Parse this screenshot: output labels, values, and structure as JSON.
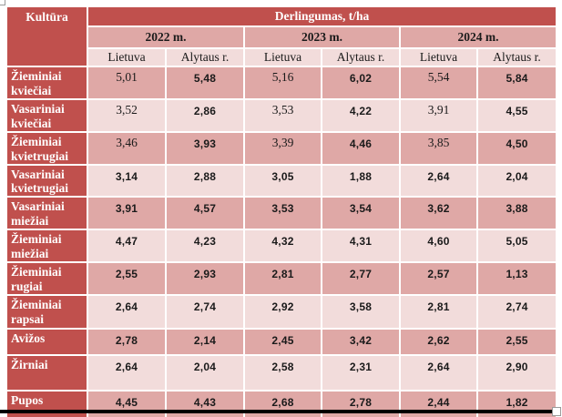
{
  "colors": {
    "header_red": "#c0504d",
    "row_pink_mid": "#dfa8a6",
    "row_pink_light": "#f2dcdb",
    "text_dark": "#1a1a1a",
    "text_white": "#ffffff"
  },
  "table": {
    "corner_header": "Kultūra",
    "main_header": "Derlingumas, t/ha",
    "year_headers": [
      "2022 m.",
      "2023 m.",
      "2024 m."
    ],
    "region_headers": [
      "Lietuva",
      "Alytaus r.",
      "Lietuva",
      "Alytaus r.",
      "Lietuva",
      "Alytaus r."
    ],
    "rows": [
      {
        "label": "Žieminiai kviečiai",
        "values": [
          "5,01",
          "5,48",
          "5,16",
          "6,02",
          "5,54",
          "5,84"
        ],
        "styles": [
          "plain",
          "bold",
          "plain",
          "bold",
          "plain",
          "bold"
        ],
        "shade": "mid"
      },
      {
        "label": "Vasariniai kviečiai",
        "values": [
          "3,52",
          "2,86",
          "3,53",
          "4,22",
          "3,91",
          "4,55"
        ],
        "styles": [
          "plain",
          "bold",
          "plain",
          "bold",
          "plain",
          "bold"
        ],
        "shade": "light"
      },
      {
        "label": "Žieminiai kvietrugiai",
        "values": [
          "3,46",
          "3,93",
          "3,39",
          "4,46",
          "3,85",
          "4,50"
        ],
        "styles": [
          "plain",
          "bold",
          "plain",
          "bold",
          "plain",
          "bold"
        ],
        "shade": "mid"
      },
      {
        "label": "Vasariniai kvietrugiai",
        "values": [
          "3,14",
          "2,88",
          "3,05",
          "1,88",
          "2,64",
          "2,04"
        ],
        "styles": [
          "bold",
          "bold",
          "bold",
          "bold",
          "bold",
          "bold"
        ],
        "shade": "light"
      },
      {
        "label": "Vasariniai miežiai",
        "values": [
          "3,91",
          "4,57",
          "3,53",
          "3,54",
          "3,62",
          "3,88"
        ],
        "styles": [
          "bold",
          "bold",
          "bold",
          "bold",
          "bold",
          "bold"
        ],
        "shade": "mid"
      },
      {
        "label": "Žieminiai miežiai",
        "values": [
          "4,47",
          "4,23",
          "4,32",
          "4,31",
          "4,60",
          "5,05"
        ],
        "styles": [
          "bold",
          "bold",
          "bold",
          "bold",
          "bold",
          "bold"
        ],
        "shade": "light"
      },
      {
        "label": "Žieminiai rugiai",
        "values": [
          "2,55",
          "2,93",
          "2,81",
          "2,77",
          "2,57",
          "1,13"
        ],
        "styles": [
          "bold",
          "bold",
          "bold",
          "bold",
          "bold",
          "bold"
        ],
        "shade": "mid"
      },
      {
        "label": "Žieminiai rapsai",
        "values": [
          "2,64",
          "2,74",
          "2,92",
          "3,58",
          "2,81",
          "2,74"
        ],
        "styles": [
          "bold",
          "bold",
          "bold",
          "bold",
          "bold",
          "bold"
        ],
        "shade": "light"
      },
      {
        "label": "Avižos",
        "values": [
          "2,78",
          "2,14",
          "2,45",
          "3,42",
          "2,62",
          "2,55"
        ],
        "styles": [
          "bold",
          "bold",
          "bold",
          "bold",
          "bold",
          "bold"
        ],
        "shade": "mid"
      },
      {
        "label": "Žirniai",
        "values": [
          "2,64",
          "2,04",
          "2,58",
          "2,31",
          "2,64",
          "2,90"
        ],
        "styles": [
          "bold",
          "bold",
          "bold",
          "bold",
          "bold",
          "bold"
        ],
        "shade": "light"
      },
      {
        "label": "Pupos",
        "values": [
          "4,45",
          "4,43",
          "2,68",
          "2,78",
          "2,44",
          "1,82"
        ],
        "styles": [
          "bold",
          "bold",
          "bold",
          "bold",
          "bold",
          "bold"
        ],
        "shade": "mid"
      }
    ]
  }
}
